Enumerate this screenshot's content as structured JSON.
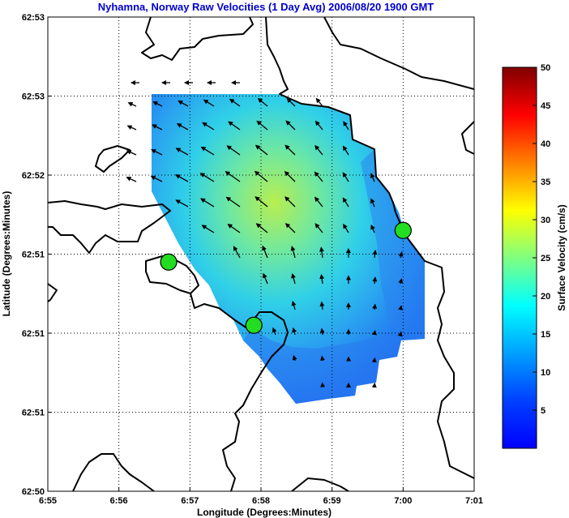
{
  "chart_data": {
    "type": "heatmap",
    "title": "Nyhamna, Norway Raw Velocities (1 Day Avg) 2006/08/20 1900 GMT",
    "xlabel": "Longitude (Degrees:Minutes)",
    "ylabel": "Latitude (Degrees:Minutes)",
    "x_ticks": [
      "6:55",
      "6:56",
      "6:57",
      "6:58",
      "6:59",
      "7:00",
      "7:01"
    ],
    "y_ticks": [
      "62:50",
      "62:51",
      "62:51",
      "62:51",
      "62:52",
      "62:53",
      "62:53"
    ],
    "xlim_minutes": [
      55,
      61
    ],
    "grid": true,
    "colorbar": {
      "label": "Surface Velocity (cm/s)",
      "ticks": [
        5,
        10,
        15,
        20,
        25,
        30,
        35,
        40,
        45,
        50
      ],
      "range": [
        0,
        50
      ],
      "colormap": "jet"
    },
    "sites": [
      {
        "lon": "6:56.7",
        "lat": "62:51.4"
      },
      {
        "lon": "6:57.9",
        "lat": "62:51.0"
      },
      {
        "lon": "7:00.0",
        "lat": "62:51.6"
      }
    ]
  }
}
